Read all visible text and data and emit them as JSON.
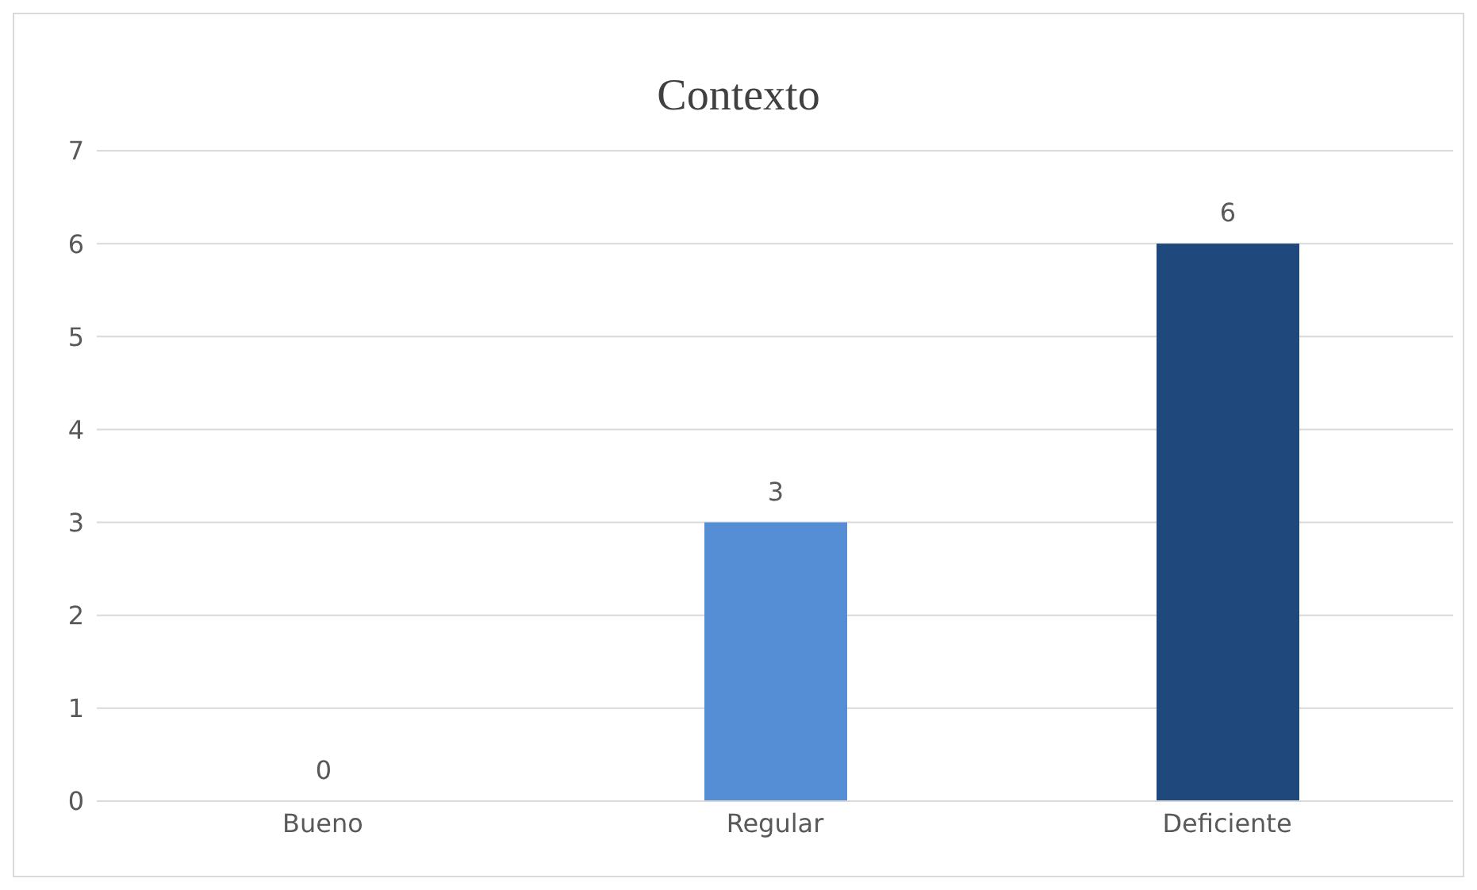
{
  "chart_data": {
    "type": "bar",
    "title": "Contexto",
    "categories": [
      "Bueno",
      "Regular",
      "Deficiente"
    ],
    "values": [
      0,
      3,
      6
    ],
    "colors": [
      "#8eb4e3",
      "#558ed5",
      "#1f497d"
    ],
    "ylim": [
      0,
      7
    ],
    "yticks": [
      0,
      1,
      2,
      3,
      4,
      5,
      6,
      7
    ],
    "grid": "y",
    "data_labels": true
  }
}
